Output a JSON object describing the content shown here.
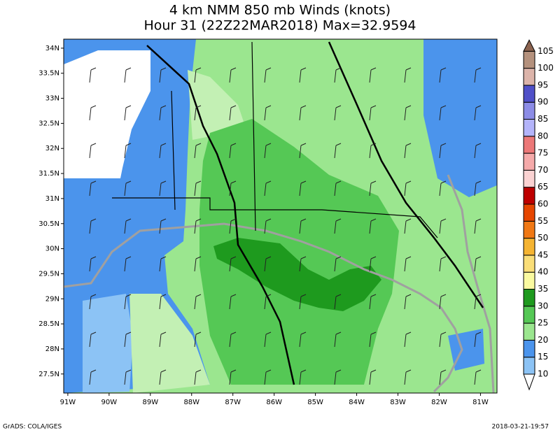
{
  "map": {
    "title_lines": [
      "4 km NMM 850 mb Winds (knots)",
      "Hour 31 (22Z22MAR2018) Max=32.9594"
    ],
    "xlim": [
      -91.1,
      -80.6
    ],
    "ylim": [
      27.12,
      34.18
    ],
    "xticks": [
      {
        "value": -91,
        "label": "91W"
      },
      {
        "value": -90,
        "label": "90W"
      },
      {
        "value": -89,
        "label": "89W"
      },
      {
        "value": -88,
        "label": "88W"
      },
      {
        "value": -87,
        "label": "87W"
      },
      {
        "value": -86,
        "label": "86W"
      },
      {
        "value": -85,
        "label": "85W"
      },
      {
        "value": -84,
        "label": "84W"
      },
      {
        "value": -83,
        "label": "83W"
      },
      {
        "value": -82,
        "label": "82W"
      },
      {
        "value": -81,
        "label": "81W"
      }
    ],
    "yticks": [
      {
        "value": 27.5,
        "label": "27.5N"
      },
      {
        "value": 28,
        "label": "28N"
      },
      {
        "value": 28.5,
        "label": "28.5N"
      },
      {
        "value": 29,
        "label": "29N"
      },
      {
        "value": 29.5,
        "label": "29.5N"
      },
      {
        "value": 30,
        "label": "30N"
      },
      {
        "value": 30.5,
        "label": "30.5N"
      },
      {
        "value": 31,
        "label": "31N"
      },
      {
        "value": 31.5,
        "label": "31.5N"
      },
      {
        "value": 32,
        "label": "32N"
      },
      {
        "value": 32.5,
        "label": "32.5N"
      },
      {
        "value": 33,
        "label": "33N"
      },
      {
        "value": 33.5,
        "label": "33.5N"
      },
      {
        "value": 34,
        "label": "34N"
      }
    ],
    "colorbar": {
      "levels": [
        10,
        15,
        20,
        25,
        30,
        35,
        40,
        45,
        50,
        55,
        60,
        65,
        70,
        75,
        80,
        85,
        90,
        95,
        100,
        105
      ],
      "colors": [
        "#ffffff",
        "#8cc3f5",
        "#4b94ec",
        "#9be68f",
        "#55c855",
        "#1e9a1e",
        "#fafaa0",
        "#fade78",
        "#f5b432",
        "#f07814",
        "#e64600",
        "#be0000",
        "#fad2d2",
        "#f5aaaa",
        "#ec7878",
        "#b4b4fa",
        "#8c8ce6",
        "#5050c8",
        "#dcb4aa",
        "#b4917d",
        "#8c6450"
      ]
    },
    "footer_left": "GrADS: COLA/IGES",
    "footer_right": "2018-03-21-19:57"
  }
}
